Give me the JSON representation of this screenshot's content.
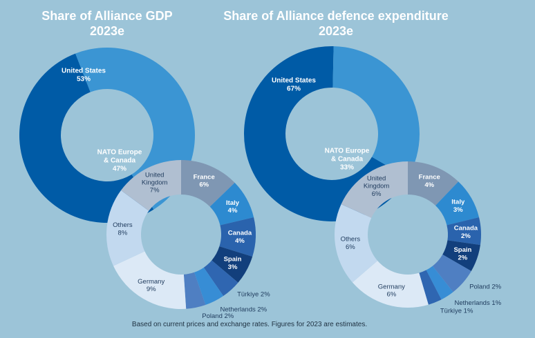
{
  "footer": "Based on current prices and exchange rates. Figures for 2023 are estimates.",
  "colors": {
    "background": "#9cc4d8",
    "us": "#005ba6",
    "nato_europe_canada": "#3b95d3",
    "hole": "#9cc4d8"
  },
  "chart_data": [
    {
      "type": "pie",
      "title": "Share of Alliance GDP",
      "subtitle": "2023e",
      "outer_ring": [
        {
          "label_lines": [
            "United States",
            "53%"
          ],
          "name": "United States",
          "value": 53,
          "color": "#005ba6"
        },
        {
          "label_lines": [
            "NATO Europe",
            "& Canada",
            "47%"
          ],
          "name": "NATO Europe & Canada",
          "value": 47,
          "color": "#3b95d3"
        }
      ],
      "breakdown_of": "NATO Europe & Canada",
      "inner_ring": [
        {
          "label_lines": [
            "France",
            "6%"
          ],
          "name": "France",
          "value": 6,
          "color": "#7f97b3",
          "text_color": "#ffffff"
        },
        {
          "label_lines": [
            "Italy",
            "4%"
          ],
          "name": "Italy",
          "value": 4,
          "color": "#2d8ad0",
          "text_color": "#ffffff"
        },
        {
          "label_lines": [
            "Canada",
            "4%"
          ],
          "name": "Canada",
          "value": 4,
          "color": "#2a63ad",
          "text_color": "#ffffff"
        },
        {
          "label_lines": [
            "Spain",
            "3%"
          ],
          "name": "Spain",
          "value": 3,
          "color": "#123f7c",
          "text_color": "#ffffff"
        },
        {
          "label_lines": [
            "Türkiye 2%"
          ],
          "name": "Türkiye",
          "value": 2,
          "color": "#2f66b1",
          "text_color": "#1e3a5c",
          "outside": true
        },
        {
          "label_lines": [
            "Netherlands 2%"
          ],
          "name": "Netherlands",
          "value": 2,
          "color": "#378dd5",
          "text_color": "#1e3a5c",
          "outside": true
        },
        {
          "label_lines": [
            "Poland 2%"
          ],
          "name": "Poland",
          "value": 2,
          "color": "#4f7fc2",
          "text_color": "#1e3a5c",
          "outside": true
        },
        {
          "label_lines": [
            "Germany",
            "9%"
          ],
          "name": "Germany",
          "value": 9,
          "color": "#dce9f6",
          "text_color": "#1e3a5c"
        },
        {
          "label_lines": [
            "Others",
            "8%"
          ],
          "name": "Others",
          "value": 8,
          "color": "#c2d9ef",
          "text_color": "#1e3a5c"
        },
        {
          "label_lines": [
            "United",
            "Kingdom",
            "7%"
          ],
          "name": "United Kingdom",
          "value": 7,
          "color": "#b0bfd1",
          "text_color": "#1e3a5c"
        }
      ]
    },
    {
      "type": "pie",
      "title": "Share of Alliance defence expenditure",
      "subtitle": "2023e",
      "outer_ring": [
        {
          "label_lines": [
            "United States",
            "67%"
          ],
          "name": "United States",
          "value": 67,
          "color": "#005ba6"
        },
        {
          "label_lines": [
            "NATO Europe",
            "& Canada",
            "33%"
          ],
          "name": "NATO Europe & Canada",
          "value": 33,
          "color": "#3b95d3"
        }
      ],
      "breakdown_of": "NATO Europe & Canada",
      "inner_ring": [
        {
          "label_lines": [
            "France",
            "4%"
          ],
          "name": "France",
          "value": 4,
          "color": "#7f97b3",
          "text_color": "#ffffff"
        },
        {
          "label_lines": [
            "Italy",
            "3%"
          ],
          "name": "Italy",
          "value": 3,
          "color": "#2d8ad0",
          "text_color": "#ffffff"
        },
        {
          "label_lines": [
            "Canada",
            "2%"
          ],
          "name": "Canada",
          "value": 2,
          "color": "#2a63ad",
          "text_color": "#ffffff"
        },
        {
          "label_lines": [
            "Spain",
            "2%"
          ],
          "name": "Spain",
          "value": 2,
          "color": "#123f7c",
          "text_color": "#ffffff"
        },
        {
          "label_lines": [
            "Poland 2%"
          ],
          "name": "Poland",
          "value": 2,
          "color": "#4f7fc2",
          "text_color": "#1e3a5c",
          "outside": true
        },
        {
          "label_lines": [
            "Netherlands 1%"
          ],
          "name": "Netherlands",
          "value": 1,
          "color": "#378dd5",
          "text_color": "#1e3a5c",
          "outside": true
        },
        {
          "label_lines": [
            "Türkiye 1%"
          ],
          "name": "Türkiye",
          "value": 1,
          "color": "#2f66b1",
          "text_color": "#1e3a5c",
          "outside": true
        },
        {
          "label_lines": [
            "Germany",
            "6%"
          ],
          "name": "Germany",
          "value": 6,
          "color": "#dce9f6",
          "text_color": "#1e3a5c"
        },
        {
          "label_lines": [
            "Others",
            "6%"
          ],
          "name": "Others",
          "value": 6,
          "color": "#c2d9ef",
          "text_color": "#1e3a5c"
        },
        {
          "label_lines": [
            "United",
            "Kingdom",
            "6%"
          ],
          "name": "United Kingdom",
          "value": 6,
          "color": "#b0bfd1",
          "text_color": "#1e3a5c"
        }
      ]
    }
  ]
}
